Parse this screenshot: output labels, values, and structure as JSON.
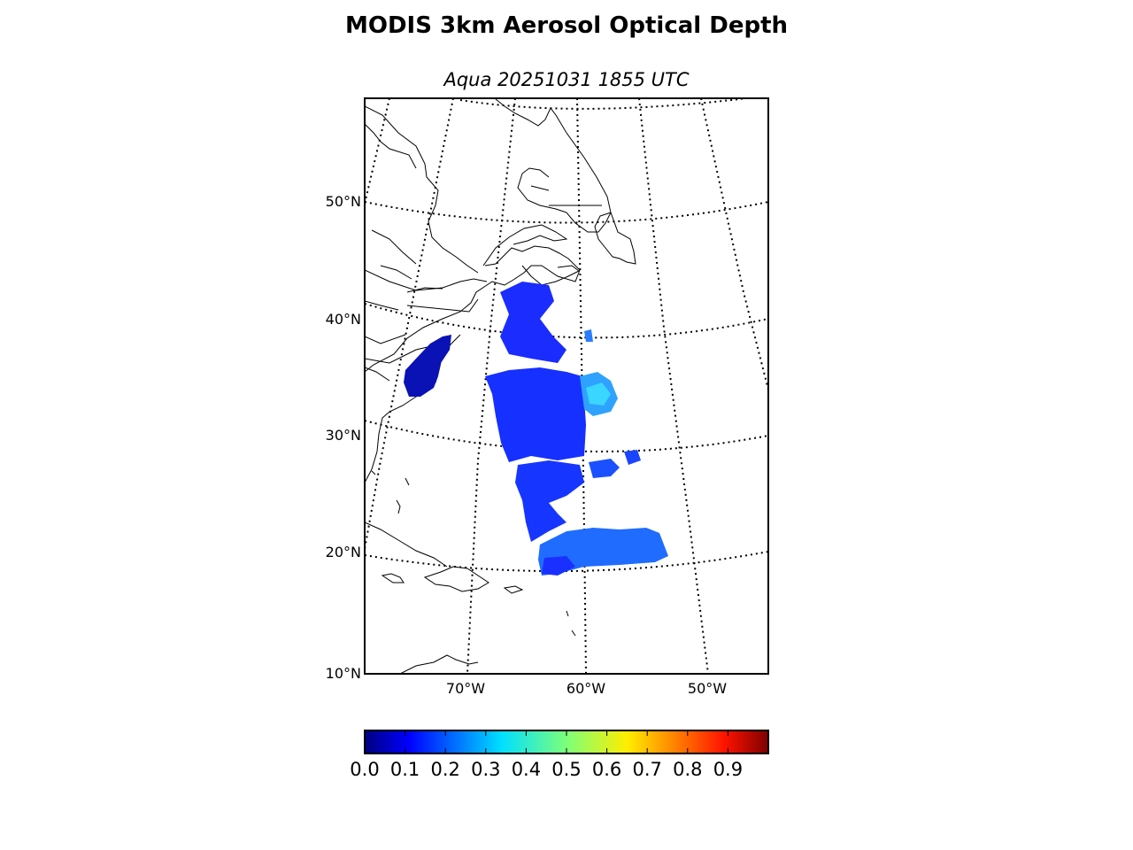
{
  "title": "MODIS 3km Aerosol Optical Depth",
  "subtitle": "Aqua 20251031 1855 UTC",
  "map": {
    "projection": "conic",
    "lat_labels": [
      "50°N",
      "40°N",
      "30°N",
      "20°N",
      "10°N"
    ],
    "lon_labels": [
      "70°W",
      "60°W",
      "50°W"
    ],
    "graticule": "dotted",
    "extent": {
      "lon_min": -78,
      "lon_max": -45,
      "lat_min": 10,
      "lat_max": 58
    }
  },
  "colorbar": {
    "colormap": "jet",
    "range": [
      0.0,
      1.0
    ],
    "tick_labels": [
      "0.0",
      "0.1",
      "0.2",
      "0.3",
      "0.4",
      "0.5",
      "0.6",
      "0.7",
      "0.8",
      "0.9"
    ]
  },
  "chart_data": {
    "type": "heatmap",
    "title": "MODIS 3km Aerosol Optical Depth",
    "subtitle": "Aqua 20251031 1855 UTC",
    "variable": "Aerosol Optical Depth",
    "value_range": [
      0.0,
      1.0
    ],
    "regions": [
      {
        "label": "",
        "lon": -62,
        "lat": 42,
        "aod": 0.12
      },
      {
        "label": "",
        "lon": -76,
        "lat": 37,
        "aod": 0.05
      },
      {
        "label": "",
        "lon": -61,
        "lat": 34,
        "aod": 0.14
      },
      {
        "label": "",
        "lon": -58,
        "lat": 34,
        "aod": 0.34
      },
      {
        "label": "",
        "lon": -62,
        "lat": 30,
        "aod": 0.13
      },
      {
        "label": "",
        "lon": -63,
        "lat": 25,
        "aod": 0.14
      },
      {
        "label": "",
        "lon": -58,
        "lat": 20,
        "aod": 0.2
      }
    ]
  }
}
